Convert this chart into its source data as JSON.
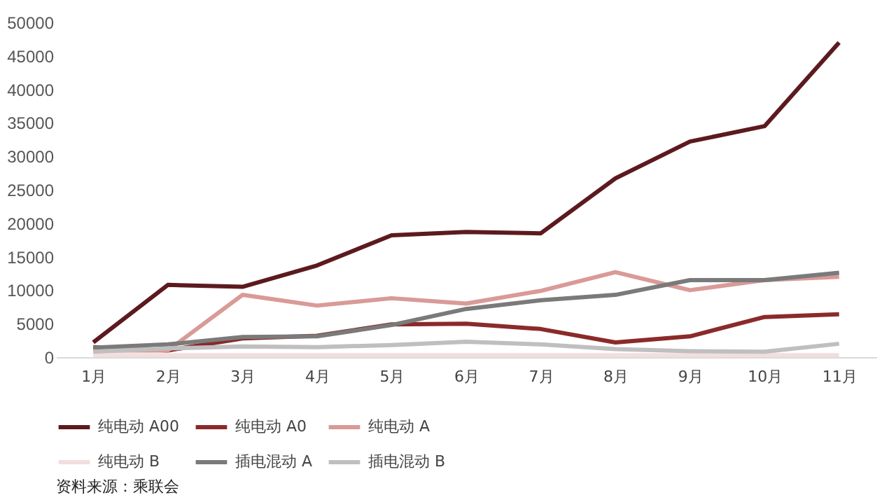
{
  "chart_data": {
    "type": "line",
    "categories": [
      "1月",
      "2月",
      "3月",
      "4月",
      "5月",
      "6月",
      "7月",
      "8月",
      "9月",
      "10月",
      "11月"
    ],
    "series": [
      {
        "name": "纯电动 A00",
        "color": "#5c1a1f",
        "values": [
          2200,
          10800,
          10500,
          13700,
          18200,
          18700,
          18500,
          26700,
          32200,
          34500,
          47000
        ]
      },
      {
        "name": "纯电动 A0",
        "color": "#8b2a2a",
        "values": [
          1500,
          1000,
          2800,
          3200,
          4900,
          5000,
          4200,
          2200,
          3100,
          6000,
          6400
        ]
      },
      {
        "name": "纯电动 A",
        "color": "#d99a98",
        "values": [
          1000,
          1000,
          9300,
          7700,
          8800,
          8000,
          9900,
          12700,
          10000,
          11500,
          12000
        ]
      },
      {
        "name": "纯电动 B",
        "color": "#f2dede",
        "values": [
          300,
          300,
          300,
          300,
          300,
          300,
          300,
          300,
          300,
          300,
          300
        ]
      },
      {
        "name": "插电混动 A",
        "color": "#7a7a7a",
        "values": [
          1400,
          1900,
          3000,
          3100,
          4800,
          7200,
          8500,
          9300,
          11500,
          11500,
          12600
        ]
      },
      {
        "name": "插电混动 B",
        "color": "#bfbfbf",
        "values": [
          800,
          1300,
          1600,
          1500,
          1800,
          2300,
          1900,
          1200,
          900,
          800,
          2000
        ]
      }
    ],
    "ylim": [
      0,
      50000
    ],
    "yticks": [
      0,
      5000,
      10000,
      15000,
      20000,
      25000,
      30000,
      35000,
      40000,
      45000,
      50000
    ],
    "grid": false,
    "legend": "bottom",
    "annotations": [
      "资料来源：乘联会"
    ]
  }
}
